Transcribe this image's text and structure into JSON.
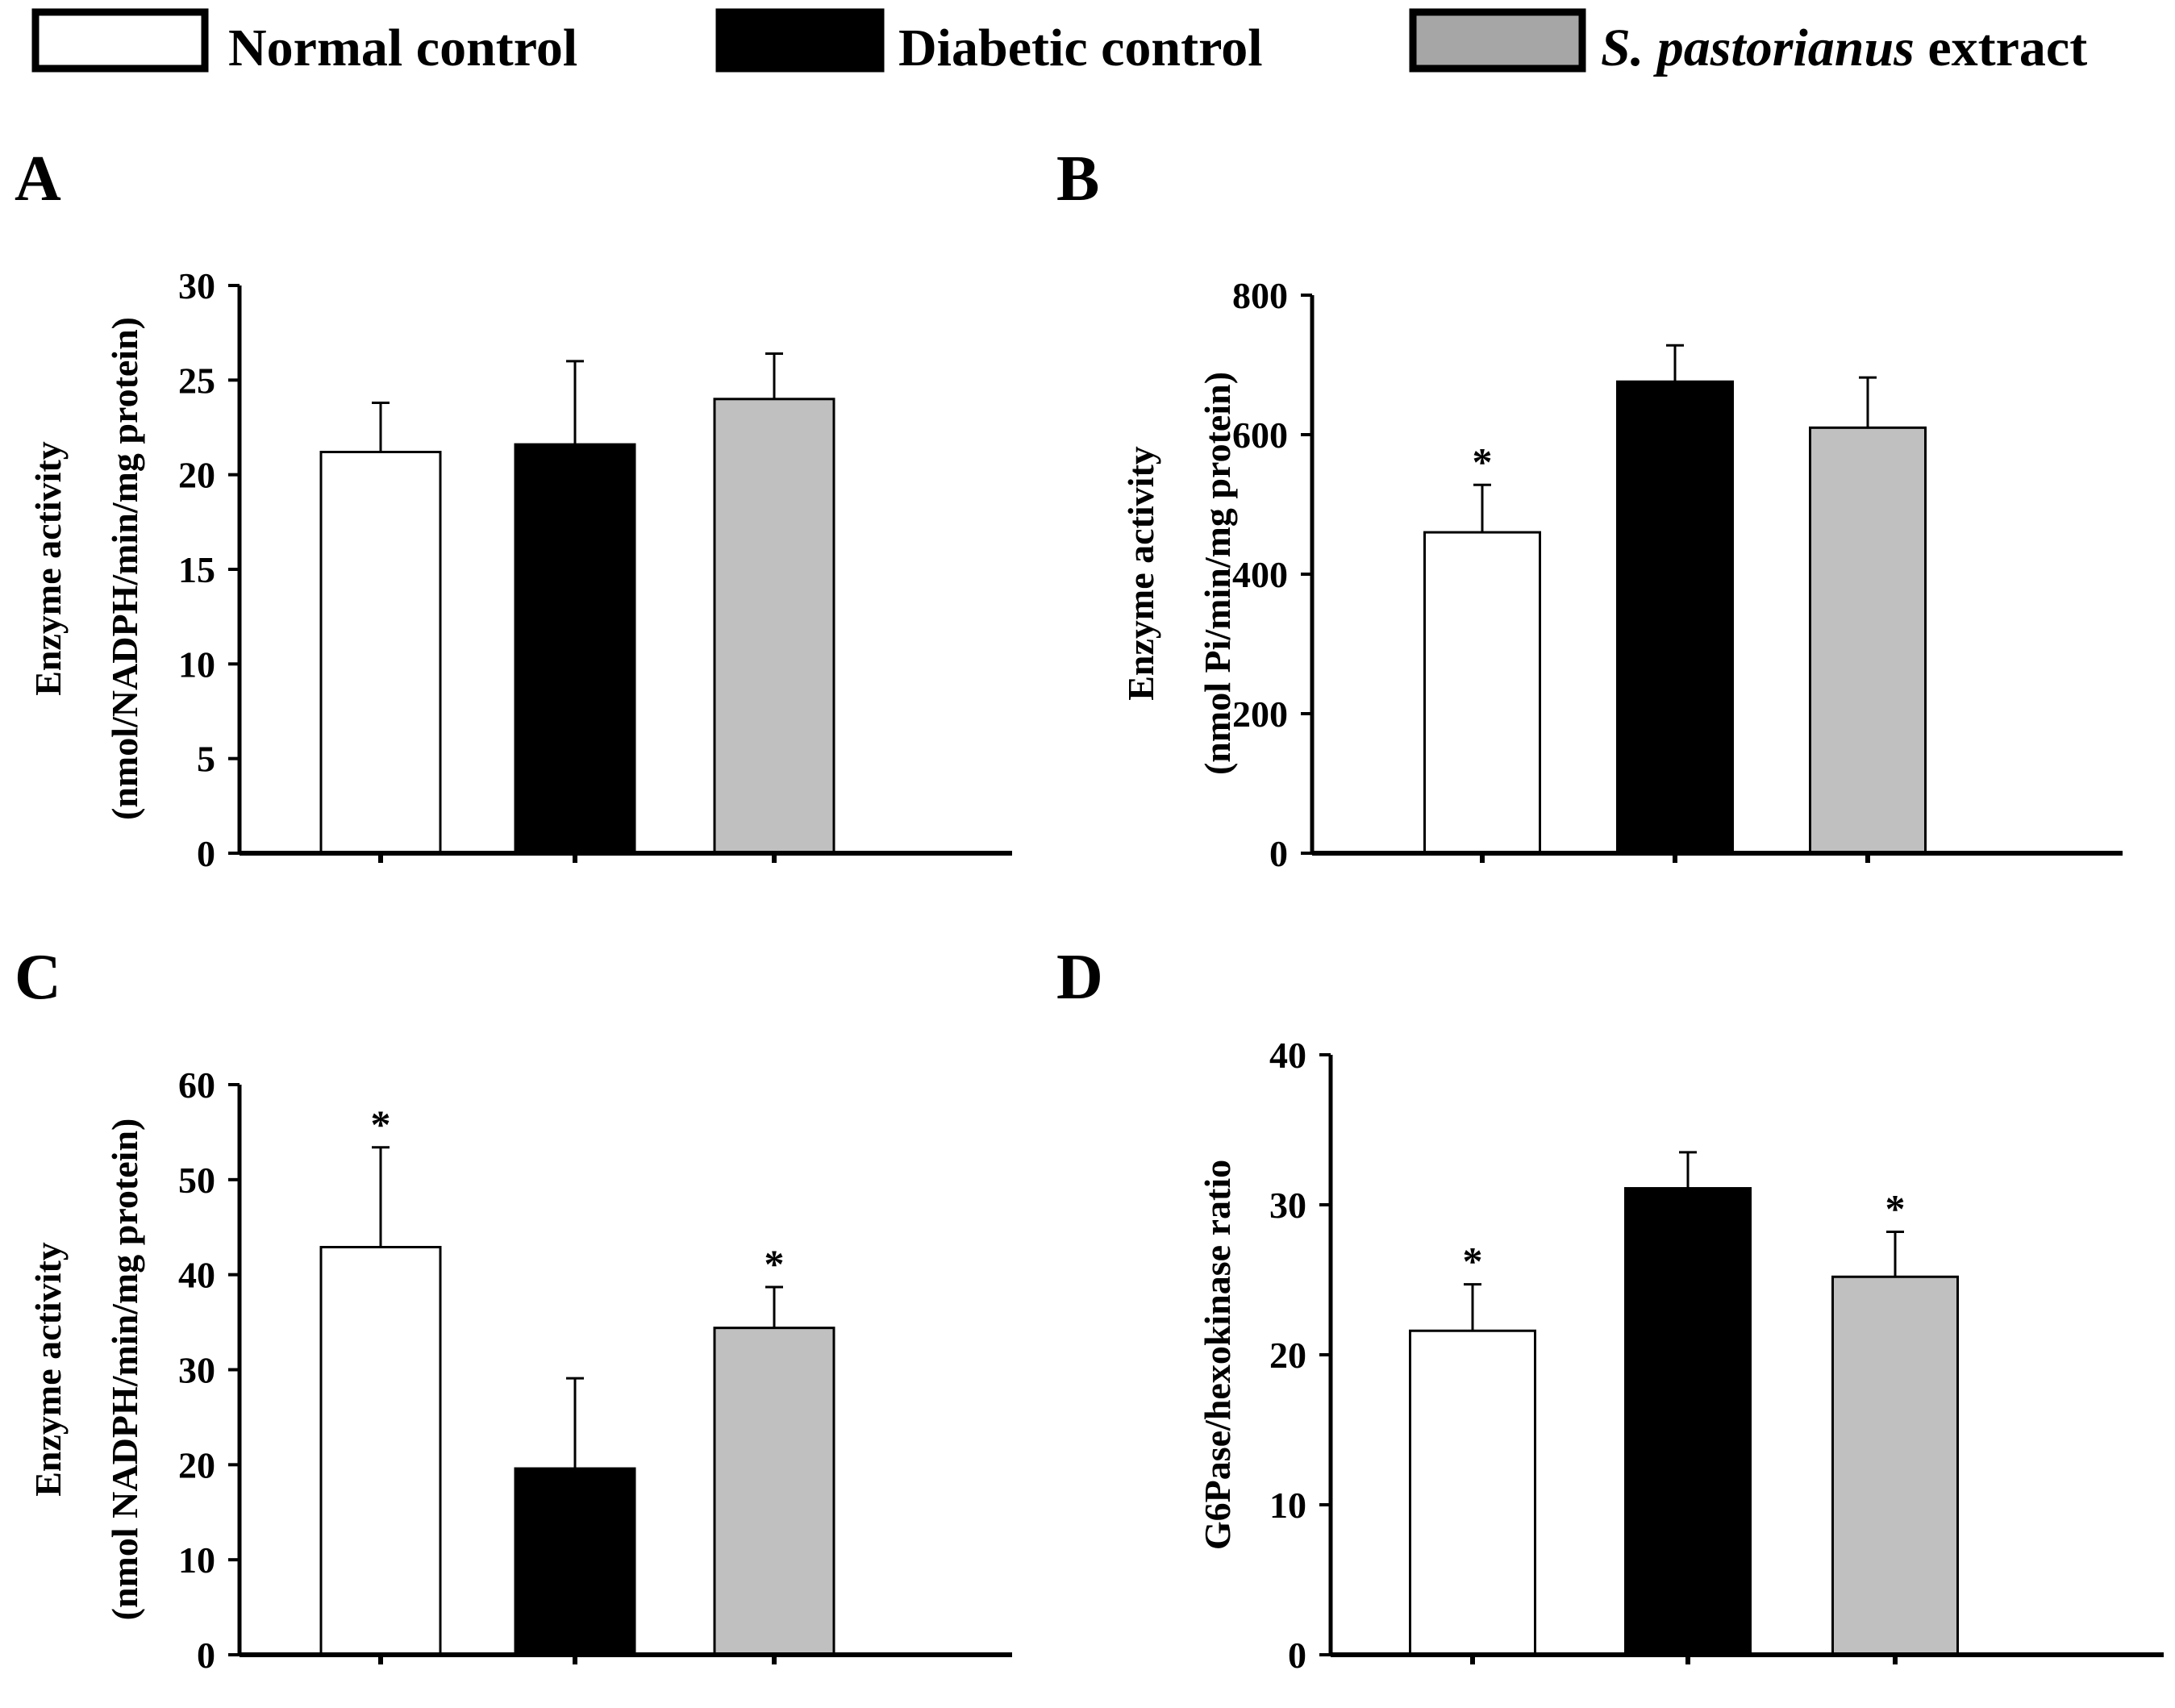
{
  "legend": [
    {
      "label": "Normal control",
      "italic_prefix": "",
      "color": "#ffffff"
    },
    {
      "label": "Diabetic control",
      "italic_prefix": "",
      "color": "#000000"
    },
    {
      "label": " extract",
      "italic_prefix": "S. pastorianus",
      "color": "#c0c0c0"
    }
  ],
  "chart_data": [
    {
      "panel": "A",
      "type": "bar",
      "categories": [
        "Normal control",
        "Diabetic control",
        "S. pastorianus extract"
      ],
      "values": [
        21.2,
        21.6,
        24.0
      ],
      "errors": [
        2.6,
        4.4,
        2.4
      ],
      "significance": [
        "",
        "",
        ""
      ],
      "colors": [
        "#ffffff",
        "#000000",
        "#c0c0c0"
      ],
      "ylabel": [
        "Enzyme activity",
        "(nmol/NADPH/min/mg protein)"
      ],
      "ylim": [
        0,
        30
      ],
      "yticks": [
        0,
        5,
        10,
        15,
        20,
        25,
        30
      ]
    },
    {
      "panel": "B",
      "type": "bar",
      "categories": [
        "Normal control",
        "Diabetic control",
        "S. pastorianus extract"
      ],
      "values": [
        460,
        676,
        610
      ],
      "errors": [
        68,
        52,
        72
      ],
      "significance": [
        "*",
        "",
        ""
      ],
      "colors": [
        "#ffffff",
        "#000000",
        "#c0c0c0"
      ],
      "ylabel": [
        "Enzyme activity",
        "(nmol Pi/min/mg protein)"
      ],
      "ylim": [
        0,
        800
      ],
      "yticks": [
        0,
        200,
        400,
        600,
        800
      ]
    },
    {
      "panel": "C",
      "type": "bar",
      "categories": [
        "Normal control",
        "Diabetic control",
        "S. pastorianus extract"
      ],
      "values": [
        42.9,
        19.6,
        34.4
      ],
      "errors": [
        10.5,
        9.5,
        4.3
      ],
      "significance": [
        "*",
        "",
        "*"
      ],
      "colors": [
        "#ffffff",
        "#000000",
        "#c0c0c0"
      ],
      "ylabel": [
        "Enzyme activity",
        "(nmol NADPH/min/mg protein)"
      ],
      "ylim": [
        0,
        60
      ],
      "yticks": [
        0,
        10,
        20,
        30,
        40,
        50,
        60
      ]
    },
    {
      "panel": "D",
      "type": "bar",
      "categories": [
        "Normal control",
        "Diabetic control",
        "S. pastorianus extract"
      ],
      "values": [
        21.6,
        31.1,
        25.2
      ],
      "errors": [
        3.1,
        2.4,
        3.0
      ],
      "significance": [
        "*",
        "",
        "*"
      ],
      "colors": [
        "#ffffff",
        "#000000",
        "#c0c0c0"
      ],
      "ylabel": [
        "G6Pase/hexokinase ratio"
      ],
      "ylim": [
        0,
        40
      ],
      "yticks": [
        0,
        10,
        20,
        30,
        40
      ]
    }
  ]
}
